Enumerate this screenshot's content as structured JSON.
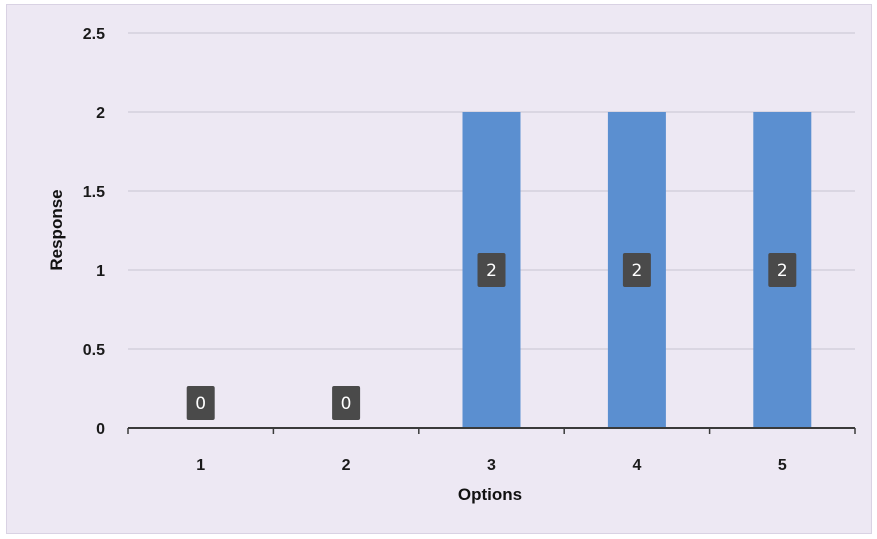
{
  "chart_data": {
    "type": "bar",
    "categories": [
      "1",
      "2",
      "3",
      "4",
      "5"
    ],
    "values": [
      0,
      0,
      2,
      2,
      2
    ],
    "data_labels": [
      "0",
      "0",
      "2",
      "2",
      "2"
    ],
    "xlabel": "Options",
    "ylabel": "Response",
    "ylim": [
      0,
      2.5
    ],
    "yticks": [
      "0",
      "0.5",
      "1",
      "1.5",
      "2",
      "2.5"
    ],
    "grid": true,
    "legend": "none",
    "colors": {
      "bar": "#5b8fd0",
      "label_bg": "#4a4a4a",
      "gridline": "#d0cbd8",
      "axis": "#3a3a3a",
      "background": "#ede8f3"
    }
  }
}
